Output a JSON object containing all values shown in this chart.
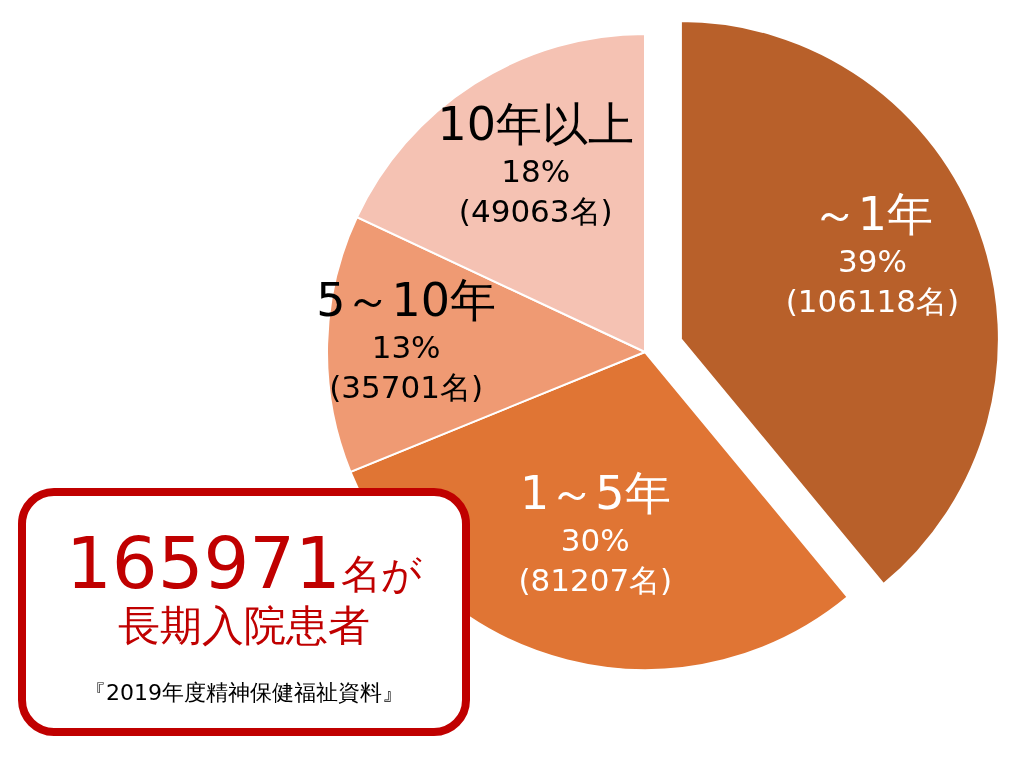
{
  "chart_data": {
    "type": "pie",
    "categories": [
      "～1年",
      "1～5年",
      "5～10年",
      "10年以上"
    ],
    "values": [
      106118,
      81207,
      35701,
      49063
    ],
    "value_labels": [
      "39%\n(106118名)",
      "30%\n(81207名)",
      "13%\n(35701名)",
      "18%\n(49063名)"
    ],
    "colors": [
      "#b8602a",
      "#e07534",
      "#ef9a73",
      "#f5c2b3"
    ],
    "annotations": [
      "165971名が",
      "長期入院患者",
      "『2019年度精神保健福祉資料』"
    ]
  }
}
